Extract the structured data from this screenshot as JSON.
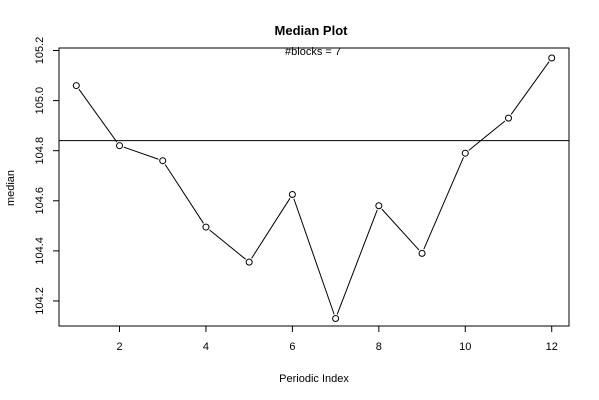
{
  "chart_data": {
    "type": "line",
    "title": "Median Plot",
    "subtitle": "#blocks =  7",
    "xlabel": "Periodic Index",
    "ylabel": "median",
    "x": [
      1,
      2,
      3,
      4,
      5,
      6,
      7,
      8,
      9,
      10,
      11,
      12
    ],
    "series": [
      {
        "values": [
          105.06,
          104.82,
          104.76,
          104.495,
          104.355,
          104.625,
          104.13,
          104.58,
          104.39,
          104.79,
          104.93,
          105.17
        ]
      }
    ],
    "reference_line": 104.84,
    "xlim": [
      0.6,
      12.4
    ],
    "ylim": [
      104.1,
      105.21
    ],
    "xticks": [
      2,
      4,
      6,
      8,
      10,
      12
    ],
    "xtick_labels": [
      "2",
      "4",
      "6",
      "8",
      "10",
      "12"
    ],
    "yticks": [
      104.2,
      104.4,
      104.6,
      104.8,
      105.0,
      105.2
    ],
    "ytick_labels": [
      "104.2",
      "104.4",
      "104.6",
      "104.8",
      "105.0",
      "105.2"
    ],
    "grid": false,
    "marker": "open-circle",
    "colors": {
      "line": "#000000",
      "background": "#ffffff"
    }
  }
}
